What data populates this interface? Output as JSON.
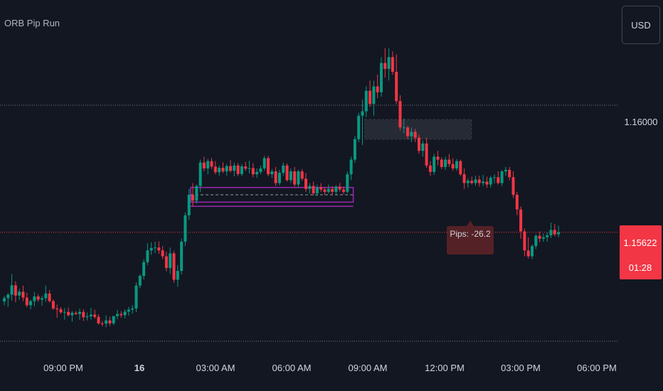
{
  "header": {
    "indicator_title": "ORB Pip Run",
    "currency_label": "USD"
  },
  "price_label": {
    "value": "1.15622",
    "countdown": "01:28"
  },
  "annotation": {
    "text": "Pips: -26.2"
  },
  "colors": {
    "background": "#131722",
    "bull": "#089981",
    "bear": "#f23645",
    "range_box": "#9c27b0",
    "price_line": "#f23645",
    "text": "#d1d4dc"
  },
  "chart_data": {
    "type": "candlestick",
    "title": "",
    "ylim": [
      1.1525,
      1.1625
    ],
    "y_ticks": [
      {
        "value": 1.16,
        "label": "1.16000"
      }
    ],
    "x_ticks": [
      "09:00 PM",
      "16",
      "03:00 AM",
      "06:00 AM",
      "09:00 AM",
      "12:00 PM",
      "03:00 PM",
      "06:00 PM"
    ],
    "opening_range": {
      "high": 1.15775,
      "low": 1.15725,
      "mid": 1.1575,
      "start_bar": 50,
      "end_bar": 92
    },
    "last_price": 1.15622,
    "candles": [
      [
        1.15386,
        1.15405,
        1.15373,
        1.15397
      ],
      [
        1.15397,
        1.15415,
        1.15368,
        1.15409
      ],
      [
        1.15409,
        1.15479,
        1.15389,
        1.15441
      ],
      [
        1.15441,
        1.15455,
        1.15383,
        1.15406
      ],
      [
        1.15406,
        1.15429,
        1.15391,
        1.15419
      ],
      [
        1.15419,
        1.1544,
        1.15387,
        1.15399
      ],
      [
        1.15399,
        1.15415,
        1.15366,
        1.15373
      ],
      [
        1.15373,
        1.15392,
        1.15359,
        1.15387
      ],
      [
        1.15387,
        1.15418,
        1.15369,
        1.15403
      ],
      [
        1.15403,
        1.15411,
        1.15384,
        1.15392
      ],
      [
        1.15392,
        1.15406,
        1.15372,
        1.15397
      ],
      [
        1.15397,
        1.1544,
        1.15385,
        1.15413
      ],
      [
        1.15413,
        1.15425,
        1.15382,
        1.15387
      ],
      [
        1.15387,
        1.15393,
        1.15357,
        1.15362
      ],
      [
        1.15362,
        1.15375,
        1.1533,
        1.15359
      ],
      [
        1.15359,
        1.15366,
        1.15343,
        1.15349
      ],
      [
        1.15349,
        1.15363,
        1.15324,
        1.1535
      ],
      [
        1.1535,
        1.15365,
        1.15334,
        1.15339
      ],
      [
        1.15339,
        1.15353,
        1.15317,
        1.15347
      ],
      [
        1.15347,
        1.15353,
        1.15339,
        1.15343
      ],
      [
        1.15343,
        1.15361,
        1.15323,
        1.1535
      ],
      [
        1.1535,
        1.15359,
        1.15319,
        1.15332
      ],
      [
        1.15332,
        1.15348,
        1.15321,
        1.15335
      ],
      [
        1.15335,
        1.15364,
        1.15324,
        1.15341
      ],
      [
        1.15341,
        1.15358,
        1.15327,
        1.15333
      ],
      [
        1.15333,
        1.15342,
        1.15307,
        1.15311
      ],
      [
        1.15311,
        1.15319,
        1.15301,
        1.1531
      ],
      [
        1.1531,
        1.15338,
        1.15298,
        1.15321
      ],
      [
        1.15321,
        1.15333,
        1.15302,
        1.15311
      ],
      [
        1.15311,
        1.15336,
        1.15305,
        1.15336
      ],
      [
        1.15336,
        1.15357,
        1.15325,
        1.15343
      ],
      [
        1.15343,
        1.15353,
        1.1533,
        1.15339
      ],
      [
        1.15339,
        1.15359,
        1.15328,
        1.15351
      ],
      [
        1.15351,
        1.15367,
        1.15337,
        1.15358
      ],
      [
        1.15358,
        1.15373,
        1.15344,
        1.15362
      ],
      [
        1.15362,
        1.15451,
        1.15349,
        1.1544
      ],
      [
        1.1544,
        1.15479,
        1.15431,
        1.15473
      ],
      [
        1.15473,
        1.1553,
        1.15461,
        1.1552
      ],
      [
        1.1552,
        1.15585,
        1.1551,
        1.1556
      ],
      [
        1.1556,
        1.15588,
        1.15545,
        1.15568
      ],
      [
        1.15568,
        1.1559,
        1.15551,
        1.1557
      ],
      [
        1.1557,
        1.15591,
        1.15548,
        1.1556
      ],
      [
        1.1556,
        1.15575,
        1.1553,
        1.1554
      ],
      [
        1.1554,
        1.15555,
        1.15489,
        1.155
      ],
      [
        1.155,
        1.1557,
        1.1548,
        1.1555
      ],
      [
        1.1555,
        1.15558,
        1.1545,
        1.1546
      ],
      [
        1.1546,
        1.1551,
        1.15436,
        1.1549
      ],
      [
        1.1549,
        1.156,
        1.15478,
        1.1559
      ],
      [
        1.1559,
        1.1569,
        1.15575,
        1.1568
      ],
      [
        1.1568,
        1.1577,
        1.15665,
        1.1575
      ],
      [
        1.1575,
        1.1579,
        1.1571,
        1.1573
      ],
      [
        1.1573,
        1.15785,
        1.1572,
        1.1578
      ],
      [
        1.1578,
        1.1587,
        1.1576,
        1.1586
      ],
      [
        1.1586,
        1.1588,
        1.1583,
        1.1584
      ],
      [
        1.1584,
        1.15873,
        1.1582,
        1.15865
      ],
      [
        1.15865,
        1.15876,
        1.15838,
        1.15846
      ],
      [
        1.15846,
        1.15865,
        1.1582,
        1.15827
      ],
      [
        1.15827,
        1.1585,
        1.15815,
        1.15842
      ],
      [
        1.15842,
        1.15861,
        1.15824,
        1.1583
      ],
      [
        1.1583,
        1.15855,
        1.15815,
        1.15848
      ],
      [
        1.15848,
        1.15868,
        1.15826,
        1.15832
      ],
      [
        1.15832,
        1.1586,
        1.15813,
        1.1585
      ],
      [
        1.1585,
        1.15858,
        1.15814,
        1.15821
      ],
      [
        1.15821,
        1.15855,
        1.15814,
        1.15847
      ],
      [
        1.15847,
        1.15862,
        1.15832,
        1.15839
      ],
      [
        1.15839,
        1.15866,
        1.15823,
        1.15841
      ],
      [
        1.15841,
        1.15858,
        1.1581,
        1.1582
      ],
      [
        1.1582,
        1.1584,
        1.15808,
        1.15828
      ],
      [
        1.15828,
        1.1585,
        1.1582,
        1.1584
      ],
      [
        1.1584,
        1.15883,
        1.15832,
        1.15875
      ],
      [
        1.15875,
        1.15883,
        1.15813,
        1.1582
      ],
      [
        1.1582,
        1.15838,
        1.15807,
        1.1583
      ],
      [
        1.1583,
        1.15845,
        1.1578,
        1.1579
      ],
      [
        1.1579,
        1.15835,
        1.15782,
        1.15825
      ],
      [
        1.15825,
        1.1586,
        1.15815,
        1.1585
      ],
      [
        1.1585,
        1.15857,
        1.15795,
        1.158
      ],
      [
        1.158,
        1.1584,
        1.1579,
        1.1583
      ],
      [
        1.1583,
        1.15845,
        1.15778,
        1.15785
      ],
      [
        1.15785,
        1.15835,
        1.15775,
        1.1583
      ],
      [
        1.1583,
        1.15838,
        1.15798,
        1.15805
      ],
      [
        1.15805,
        1.15825,
        1.1576,
        1.1577
      ],
      [
        1.1577,
        1.1579,
        1.15755,
        1.1578
      ],
      [
        1.1578,
        1.15795,
        1.15748,
        1.15755
      ],
      [
        1.15755,
        1.15785,
        1.15745,
        1.15775
      ],
      [
        1.15775,
        1.1579,
        1.1576,
        1.15768
      ],
      [
        1.15768,
        1.15775,
        1.1575,
        1.1576
      ],
      [
        1.1576,
        1.15785,
        1.15755,
        1.1577
      ],
      [
        1.1577,
        1.1578,
        1.1575,
        1.1576
      ],
      [
        1.1576,
        1.15783,
        1.15752,
        1.15778
      ],
      [
        1.15778,
        1.1579,
        1.1576,
        1.15768
      ],
      [
        1.15768,
        1.15778,
        1.15752,
        1.1576
      ],
      [
        1.1576,
        1.1583,
        1.15755,
        1.1582
      ],
      [
        1.1582,
        1.1588,
        1.158,
        1.1587
      ],
      [
        1.1587,
        1.1595,
        1.1586,
        1.1594
      ],
      [
        1.1594,
        1.1603,
        1.1593,
        1.1602
      ],
      [
        1.1602,
        1.16075,
        1.1592,
        1.16035
      ],
      [
        1.16035,
        1.1612,
        1.16015,
        1.16105
      ],
      [
        1.16105,
        1.1614,
        1.1605,
        1.1606
      ],
      [
        1.1606,
        1.1614,
        1.1602,
        1.1612
      ],
      [
        1.1612,
        1.1616,
        1.1608,
        1.161
      ],
      [
        1.161,
        1.1622,
        1.16085,
        1.162
      ],
      [
        1.162,
        1.1625,
        1.1615,
        1.1618
      ],
      [
        1.1618,
        1.1625,
        1.1614,
        1.1622
      ],
      [
        1.1622,
        1.1624,
        1.1616,
        1.1617
      ],
      [
        1.1617,
        1.1623,
        1.1606,
        1.1607
      ],
      [
        1.1607,
        1.1609,
        1.1597,
        1.1598
      ],
      [
        1.1598,
        1.1601,
        1.1596,
        1.1598
      ],
      [
        1.1598,
        1.15985,
        1.1594,
        1.1595
      ],
      [
        1.1595,
        1.1598,
        1.1593,
        1.15965
      ],
      [
        1.15965,
        1.15975,
        1.1593,
        1.15945
      ],
      [
        1.15945,
        1.15955,
        1.1589,
        1.159
      ],
      [
        1.159,
        1.15935,
        1.1588,
        1.15925
      ],
      [
        1.15925,
        1.15945,
        1.15842,
        1.1585
      ],
      [
        1.1585,
        1.15865,
        1.15815,
        1.15828
      ],
      [
        1.15828,
        1.1589,
        1.15818,
        1.1588
      ],
      [
        1.1588,
        1.159,
        1.1585,
        1.1587
      ],
      [
        1.1587,
        1.15878,
        1.15838,
        1.15845
      ],
      [
        1.15845,
        1.1588,
        1.15835,
        1.1587
      ],
      [
        1.1587,
        1.15889,
        1.15845,
        1.15855
      ],
      [
        1.15855,
        1.15875,
        1.15832,
        1.1584
      ],
      [
        1.1584,
        1.15872,
        1.15832,
        1.15865
      ],
      [
        1.15865,
        1.1587,
        1.15814,
        1.1582
      ],
      [
        1.1582,
        1.1584,
        1.1577,
        1.1579
      ],
      [
        1.1579,
        1.15806,
        1.15775,
        1.15798
      ],
      [
        1.15798,
        1.15812,
        1.15785,
        1.1579
      ],
      [
        1.1579,
        1.15815,
        1.15781,
        1.15802
      ],
      [
        1.15802,
        1.15815,
        1.15778,
        1.1579
      ],
      [
        1.1579,
        1.15818,
        1.1578,
        1.15795
      ],
      [
        1.15795,
        1.15812,
        1.15774,
        1.15785
      ],
      [
        1.15785,
        1.15815,
        1.15775,
        1.15808
      ],
      [
        1.15808,
        1.1582,
        1.15789,
        1.1581
      ],
      [
        1.1581,
        1.1583,
        1.15785,
        1.1579
      ],
      [
        1.1579,
        1.15835,
        1.1578,
        1.1583
      ],
      [
        1.1583,
        1.15845,
        1.15815,
        1.15835
      ],
      [
        1.15835,
        1.15845,
        1.158,
        1.1581
      ],
      [
        1.1581,
        1.1583,
        1.1574,
        1.1575
      ],
      [
        1.1575,
        1.1576,
        1.1568,
        1.157
      ],
      [
        1.157,
        1.1571,
        1.156,
        1.15625
      ],
      [
        1.15625,
        1.15635,
        1.1554,
        1.1556
      ],
      [
        1.1556,
        1.15605,
        1.15532,
        1.1554
      ],
      [
        1.1554,
        1.1558,
        1.1553,
        1.15575
      ],
      [
        1.15575,
        1.15615,
        1.15565,
        1.1561
      ],
      [
        1.1561,
        1.15625,
        1.15588,
        1.156
      ],
      [
        1.156,
        1.15618,
        1.1559,
        1.15605
      ],
      [
        1.15605,
        1.15621,
        1.1559,
        1.15612
      ],
      [
        1.15612,
        1.15655,
        1.15603,
        1.1563
      ],
      [
        1.1563,
        1.1565,
        1.15608,
        1.15615
      ],
      [
        1.15615,
        1.15645,
        1.15605,
        1.15622
      ]
    ]
  }
}
